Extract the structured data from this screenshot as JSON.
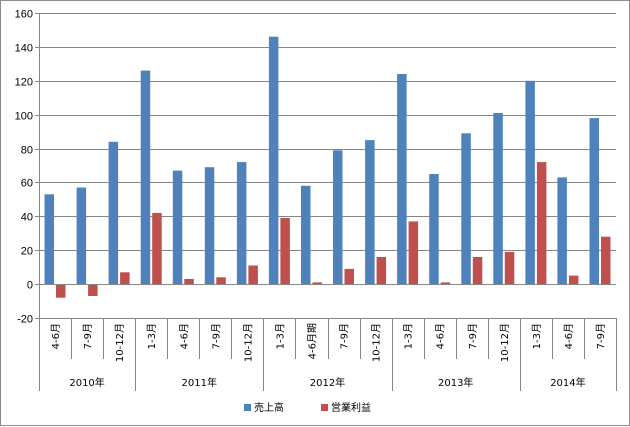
{
  "chart_data": {
    "type": "bar",
    "title": "",
    "xlabel": "",
    "ylabel": "",
    "ylim": [
      -20,
      160
    ],
    "yticks": [
      -20,
      0,
      20,
      40,
      60,
      80,
      100,
      120,
      140,
      160
    ],
    "grid": true,
    "legend_position": "bottom",
    "categories": [
      "4-6月",
      "7-9月",
      "10-12月",
      "1-3月",
      "4-6月",
      "7-9月",
      "10-12月",
      "1-3月",
      "4-6月期",
      "7-9月",
      "10-12月",
      "1-3月",
      "4-6月",
      "7-9月",
      "10-12月",
      "1-3月",
      "4-6月",
      "7-9月"
    ],
    "groups": [
      {
        "label": "2010年",
        "count": 3
      },
      {
        "label": "2011年",
        "count": 4
      },
      {
        "label": "2012年",
        "count": 4
      },
      {
        "label": "2013年",
        "count": 4
      },
      {
        "label": "2014年",
        "count": 3
      }
    ],
    "series": [
      {
        "name": "売上高",
        "color": "#4f81bd",
        "values": [
          53,
          57,
          84,
          126,
          67,
          69,
          72,
          146,
          58,
          79,
          85,
          124,
          65,
          89,
          101,
          120,
          63,
          98
        ]
      },
      {
        "name": "営業利益",
        "color": "#c0504d",
        "values": [
          -8,
          -7,
          7,
          42,
          3,
          4,
          11,
          39,
          1,
          9,
          16,
          37,
          1,
          16,
          19,
          72,
          5,
          28
        ]
      }
    ]
  }
}
